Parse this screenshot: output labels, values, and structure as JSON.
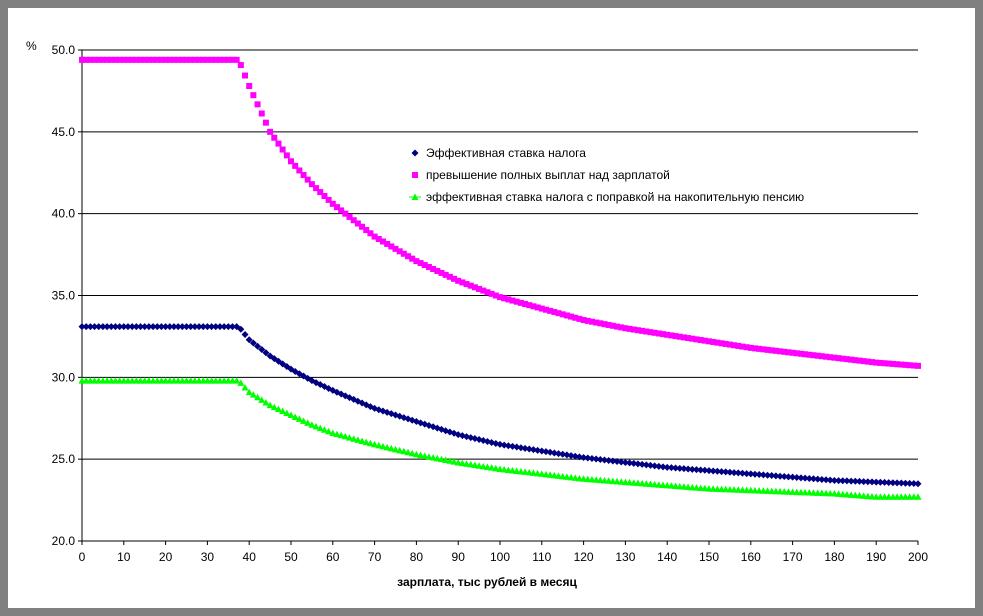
{
  "chart_data": {
    "type": "scatter",
    "title": "",
    "xlabel": "зарплата, тыс рублей в месяц",
    "ylabel": "%",
    "xlim": [
      0,
      200
    ],
    "ylim": [
      20,
      50
    ],
    "x_ticks": [
      "0",
      "10",
      "20",
      "30",
      "40",
      "50",
      "60",
      "70",
      "80",
      "90",
      "100",
      "110",
      "120",
      "130",
      "140",
      "150",
      "160",
      "170",
      "180",
      "190",
      "200"
    ],
    "y_ticks": [
      "20.0",
      "25.0",
      "30.0",
      "35.0",
      "40.0",
      "45.0",
      "50.0"
    ],
    "grid": "horizontal",
    "legend_position": "center-right",
    "series": [
      {
        "name": "Эффективная ставка налога",
        "color": "#000080",
        "marker": "diamond",
        "points": [
          [
            0,
            33.1
          ],
          [
            10,
            33.1
          ],
          [
            20,
            33.1
          ],
          [
            30,
            33.1
          ],
          [
            37.5,
            33.1
          ],
          [
            40,
            32.3
          ],
          [
            45,
            31.3
          ],
          [
            50,
            30.5
          ],
          [
            55,
            29.8
          ],
          [
            60,
            29.2
          ],
          [
            70,
            28.1
          ],
          [
            80,
            27.3
          ],
          [
            90,
            26.5
          ],
          [
            100,
            25.9
          ],
          [
            110,
            25.5
          ],
          [
            120,
            25.1
          ],
          [
            130,
            24.8
          ],
          [
            140,
            24.5
          ],
          [
            150,
            24.3
          ],
          [
            160,
            24.1
          ],
          [
            170,
            23.9
          ],
          [
            180,
            23.7
          ],
          [
            190,
            23.6
          ],
          [
            200,
            23.5
          ]
        ]
      },
      {
        "name": "превышение полных выплат над зарплатой",
        "color": "#ff00ff",
        "marker": "square",
        "points": [
          [
            0,
            49.4
          ],
          [
            10,
            49.4
          ],
          [
            20,
            49.4
          ],
          [
            30,
            49.4
          ],
          [
            37.5,
            49.4
          ],
          [
            40,
            47.8
          ],
          [
            45,
            45.0
          ],
          [
            50,
            43.2
          ],
          [
            55,
            41.8
          ],
          [
            60,
            40.6
          ],
          [
            70,
            38.6
          ],
          [
            80,
            37.1
          ],
          [
            90,
            35.9
          ],
          [
            100,
            34.9
          ],
          [
            110,
            34.2
          ],
          [
            120,
            33.5
          ],
          [
            130,
            33.0
          ],
          [
            140,
            32.6
          ],
          [
            150,
            32.2
          ],
          [
            160,
            31.8
          ],
          [
            170,
            31.5
          ],
          [
            180,
            31.2
          ],
          [
            190,
            30.9
          ],
          [
            200,
            30.7
          ]
        ]
      },
      {
        "name": "эффективная ставка налога с поправкой на накопительную пенсию",
        "color": "#00ff00",
        "marker": "triangle",
        "points": [
          [
            0,
            29.8
          ],
          [
            10,
            29.8
          ],
          [
            20,
            29.8
          ],
          [
            30,
            29.8
          ],
          [
            37.5,
            29.8
          ],
          [
            40,
            29.1
          ],
          [
            45,
            28.3
          ],
          [
            50,
            27.7
          ],
          [
            55,
            27.1
          ],
          [
            60,
            26.6
          ],
          [
            70,
            25.9
          ],
          [
            80,
            25.3
          ],
          [
            90,
            24.8
          ],
          [
            100,
            24.4
          ],
          [
            110,
            24.1
          ],
          [
            120,
            23.8
          ],
          [
            130,
            23.6
          ],
          [
            140,
            23.4
          ],
          [
            150,
            23.2
          ],
          [
            160,
            23.1
          ],
          [
            170,
            23.0
          ],
          [
            180,
            22.9
          ],
          [
            190,
            22.7
          ],
          [
            200,
            22.7
          ]
        ]
      }
    ]
  }
}
